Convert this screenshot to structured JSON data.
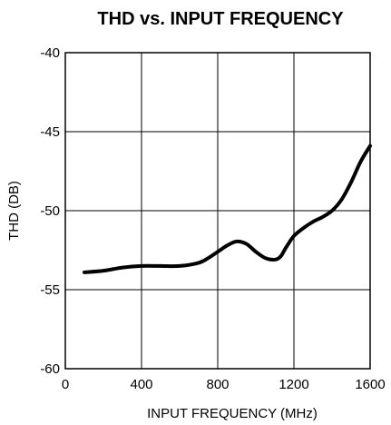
{
  "chart_data": {
    "type": "line",
    "title": "THD vs. INPUT FREQUENCY",
    "xlabel": "INPUT FREQUENCY (MHz)",
    "ylabel": "THD (DB)",
    "xlim": [
      0,
      1600
    ],
    "ylim": [
      -60,
      -40
    ],
    "x_ticks": [
      0,
      400,
      800,
      1200,
      1600
    ],
    "x_tick_labels": [
      "0",
      "400",
      "800",
      "1200",
      "1600"
    ],
    "y_ticks": [
      -40,
      -45,
      -50,
      -55,
      -60
    ],
    "y_tick_labels": [
      "-40",
      "-45",
      "-50",
      "-55",
      "-60"
    ],
    "grid": true,
    "series": [
      {
        "x": [
          100,
          200,
          300,
          400,
          500,
          600,
          700,
          750,
          800,
          850,
          900,
          950,
          1000,
          1050,
          1100,
          1130,
          1160,
          1200,
          1250,
          1300,
          1350,
          1400,
          1450,
          1500,
          1550,
          1600
        ],
        "y": [
          -53.9,
          -53.8,
          -53.6,
          -53.5,
          -53.5,
          -53.5,
          -53.3,
          -53.0,
          -52.6,
          -52.2,
          -51.95,
          -52.1,
          -52.6,
          -53.0,
          -53.1,
          -52.9,
          -52.3,
          -51.6,
          -51.1,
          -50.7,
          -50.4,
          -50.0,
          -49.3,
          -48.2,
          -46.9,
          -45.9
        ]
      }
    ]
  }
}
